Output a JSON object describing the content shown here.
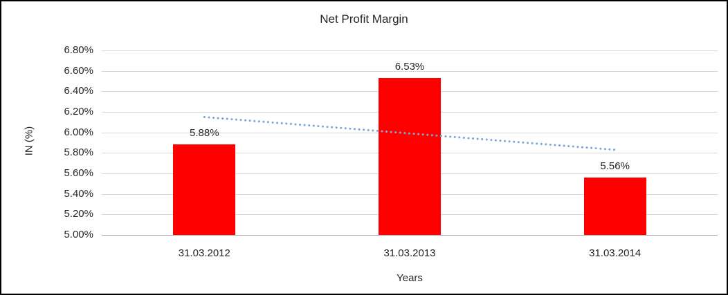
{
  "chart_data": {
    "type": "bar",
    "title": "Net Profit Margin",
    "categories": [
      "31.03.2012",
      "31.03.2013",
      "31.03.2014"
    ],
    "values": [
      5.88,
      6.53,
      5.56
    ],
    "value_labels": [
      "5.88%",
      "6.53%",
      "5.56%"
    ],
    "xlabel": "Years",
    "ylabel": "IN (%)",
    "ylim": [
      5.0,
      6.8
    ],
    "ytick_step": 0.2,
    "ytick_labels": [
      "5.00%",
      "5.20%",
      "5.40%",
      "5.60%",
      "5.80%",
      "6.00%",
      "6.20%",
      "6.40%",
      "6.60%",
      "6.80%"
    ],
    "grid": true,
    "legend": "none",
    "bar_color": "#ff0000",
    "gridline_color": "#d9d9d9",
    "trendline": {
      "type": "linear",
      "style": "dotted",
      "color": "#7da7d8",
      "start_value": 6.15,
      "end_value": 5.83
    }
  }
}
